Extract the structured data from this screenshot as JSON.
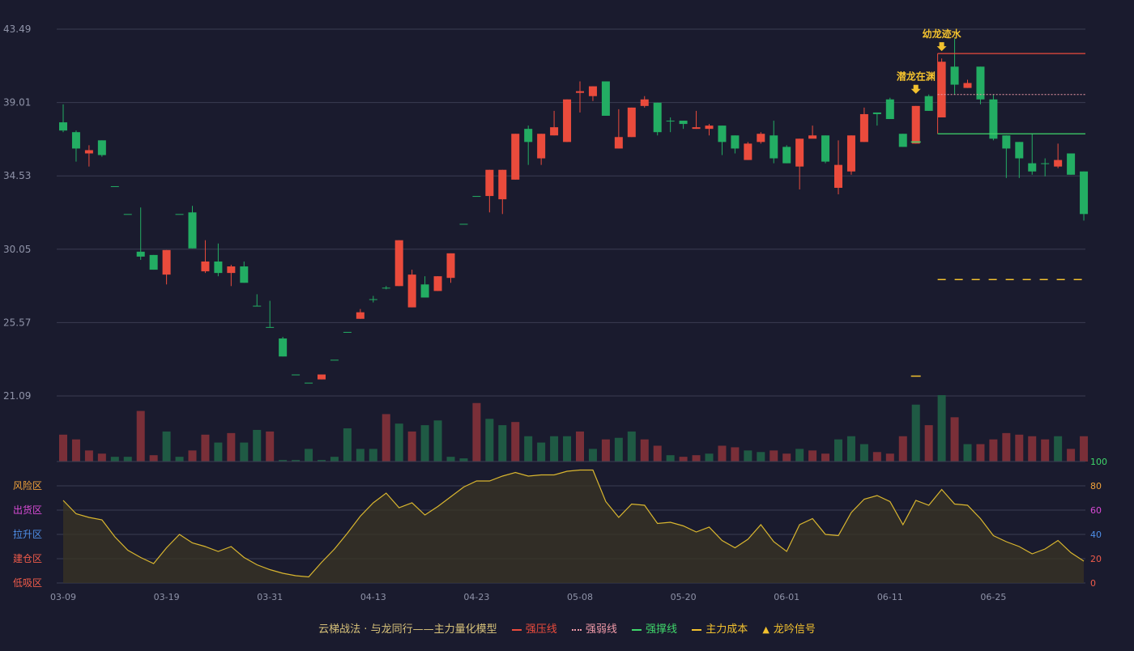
{
  "colors": {
    "background": "#1a1b2e",
    "up": "#ea4b3c",
    "down": "#23ad63",
    "up_volume": "#7a2f38",
    "down_volume": "#1f5a44",
    "pressure_line": "#ea4b3c",
    "weak_line": "#f09aa8",
    "support_line": "#3fd66a",
    "cost_line": "#f2c12e",
    "signal": "#f2c12e",
    "oscillator_line": "#d9b62f",
    "grid": "#3a3c52",
    "axis_text": "#8f93a8"
  },
  "legend": {
    "title": "云梯战法 · 与龙同行——主力量化模型",
    "items": [
      {
        "label": "强压线",
        "color": "#ea4b3c",
        "style": "solid"
      },
      {
        "label": "强弱线",
        "color": "#f09aa8",
        "style": "dotted"
      },
      {
        "label": "强撑线",
        "color": "#3fd66a",
        "style": "solid"
      },
      {
        "label": "主力成本",
        "color": "#f2c12e",
        "style": "dashed"
      },
      {
        "label": "龙吟信号",
        "color": "#f2c12e",
        "style": "triangle"
      }
    ]
  },
  "chart_data": [
    {
      "type": "candlestick",
      "title": "",
      "xlabel": "",
      "ylabel": "",
      "y_ticks": [
        "43.49",
        "39.01",
        "34.53",
        "30.05",
        "25.57",
        "21.09"
      ],
      "ylim": [
        21.09,
        43.49
      ],
      "x_tick_labels": [
        {
          "index": 0,
          "label": "03-09"
        },
        {
          "index": 8,
          "label": "03-19"
        },
        {
          "index": 16,
          "label": "03-31"
        },
        {
          "index": 24,
          "label": "04-13"
        },
        {
          "index": 32,
          "label": "04-23"
        },
        {
          "index": 40,
          "label": "05-08"
        },
        {
          "index": 48,
          "label": "05-20"
        },
        {
          "index": 56,
          "label": "06-01"
        },
        {
          "index": 64,
          "label": "06-11"
        },
        {
          "index": 72,
          "label": "06-25"
        }
      ],
      "ohlc": [
        [
          37.8,
          37.3,
          38.9,
          37.2
        ],
        [
          37.2,
          36.2,
          37.3,
          35.4
        ],
        [
          35.9,
          36.1,
          36.4,
          35.1
        ],
        [
          36.7,
          35.8,
          36.7,
          35.7
        ],
        [
          33.9,
          33.9,
          33.9,
          33.9
        ],
        [
          32.2,
          32.2,
          32.2,
          32.2
        ],
        [
          29.9,
          29.6,
          32.6,
          29.4
        ],
        [
          29.7,
          28.8,
          29.7,
          28.8
        ],
        [
          28.5,
          30.0,
          30.0,
          27.9
        ],
        [
          32.2,
          32.2,
          32.2,
          32.2
        ],
        [
          32.3,
          30.1,
          32.7,
          30.1
        ],
        [
          28.7,
          29.3,
          30.6,
          28.6
        ],
        [
          29.3,
          28.6,
          30.4,
          28.4
        ],
        [
          28.6,
          29.0,
          29.1,
          27.8
        ],
        [
          29.0,
          28.0,
          29.3,
          28.0
        ],
        [
          26.6,
          26.6,
          27.3,
          26.6
        ],
        [
          25.3,
          25.3,
          26.9,
          25.3
        ],
        [
          24.6,
          23.5,
          24.7,
          23.5
        ],
        [
          22.4,
          22.4,
          22.4,
          22.4
        ],
        [
          21.9,
          21.9,
          21.9,
          21.9
        ],
        [
          22.1,
          22.4,
          22.4,
          22.1
        ],
        [
          23.3,
          23.3,
          23.3,
          23.3
        ],
        [
          25.0,
          25.0,
          25.0,
          25.0
        ],
        [
          25.8,
          26.2,
          26.4,
          25.8
        ],
        [
          27.0,
          27.0,
          27.2,
          26.8
        ],
        [
          27.7,
          27.7,
          27.8,
          27.6
        ],
        [
          27.8,
          30.6,
          30.6,
          27.8
        ],
        [
          26.5,
          28.5,
          28.8,
          26.5
        ],
        [
          27.9,
          27.1,
          28.4,
          27.1
        ],
        [
          27.5,
          28.4,
          28.4,
          27.5
        ],
        [
          28.3,
          29.8,
          29.8,
          28.0
        ],
        [
          31.6,
          31.6,
          31.6,
          31.6
        ],
        [
          33.3,
          33.3,
          33.3,
          33.3
        ],
        [
          33.3,
          34.9,
          34.9,
          32.3
        ],
        [
          33.1,
          34.9,
          34.9,
          32.2
        ],
        [
          34.3,
          37.1,
          37.1,
          34.3
        ],
        [
          37.4,
          36.6,
          37.6,
          35.2
        ],
        [
          35.6,
          37.1,
          37.1,
          35.2
        ],
        [
          37.0,
          37.5,
          38.5,
          37.0
        ],
        [
          36.6,
          39.2,
          39.2,
          36.6
        ],
        [
          39.6,
          39.7,
          40.3,
          38.4
        ],
        [
          39.4,
          40.0,
          40.0,
          39.1
        ],
        [
          40.3,
          38.2,
          40.3,
          38.2
        ],
        [
          36.2,
          36.9,
          38.6,
          36.2
        ],
        [
          36.9,
          38.7,
          38.7,
          36.9
        ],
        [
          38.8,
          39.2,
          39.4,
          38.7
        ],
        [
          39.0,
          37.2,
          39.0,
          37.0
        ],
        [
          37.9,
          37.9,
          38.1,
          37.2
        ],
        [
          37.9,
          37.7,
          37.9,
          37.4
        ],
        [
          37.4,
          37.5,
          38.5,
          37.4
        ],
        [
          37.4,
          37.6,
          37.7,
          37.0
        ],
        [
          37.6,
          36.6,
          37.6,
          35.8
        ],
        [
          37.0,
          36.2,
          37.0,
          35.9
        ],
        [
          35.5,
          36.5,
          36.6,
          35.5
        ],
        [
          36.6,
          37.1,
          37.2,
          36.5
        ],
        [
          37.0,
          35.6,
          37.9,
          35.3
        ],
        [
          36.3,
          35.3,
          36.4,
          35.3
        ],
        [
          35.1,
          36.8,
          36.8,
          33.7
        ],
        [
          36.8,
          37.0,
          37.6,
          36.9
        ],
        [
          37.0,
          35.4,
          37.0,
          35.3
        ],
        [
          33.8,
          35.2,
          36.7,
          33.4
        ],
        [
          34.8,
          37.0,
          37.0,
          34.6
        ],
        [
          36.6,
          38.3,
          38.7,
          36.6
        ],
        [
          38.4,
          38.3,
          38.4,
          37.6
        ],
        [
          39.2,
          38.0,
          39.3,
          38.0
        ],
        [
          37.1,
          36.3,
          37.1,
          36.3
        ],
        [
          36.5,
          38.8,
          38.8,
          36.5
        ],
        [
          39.4,
          38.5,
          39.5,
          38.5
        ],
        [
          38.1,
          41.5,
          41.7,
          38.1
        ],
        [
          41.2,
          40.1,
          42.9,
          39.5
        ],
        [
          39.9,
          40.2,
          40.4,
          39.9
        ],
        [
          41.2,
          39.2,
          41.2,
          38.9
        ],
        [
          39.2,
          36.8,
          39.5,
          36.7
        ],
        [
          37.0,
          36.2,
          37.0,
          34.4
        ],
        [
          36.6,
          35.6,
          36.6,
          34.4
        ],
        [
          35.3,
          34.8,
          37.1,
          34.6
        ],
        [
          35.3,
          35.3,
          35.6,
          34.5
        ],
        [
          35.1,
          35.5,
          36.5,
          35.0
        ],
        [
          35.9,
          34.6,
          35.9,
          34.6
        ],
        [
          34.8,
          32.2,
          34.8,
          31.8
        ]
      ],
      "volume": [
        [
          17,
          1
        ],
        [
          14,
          1
        ],
        [
          7,
          1
        ],
        [
          5,
          1
        ],
        [
          3,
          0
        ],
        [
          3,
          0
        ],
        [
          32,
          1
        ],
        [
          4,
          1
        ],
        [
          19,
          0
        ],
        [
          3,
          0
        ],
        [
          7,
          1
        ],
        [
          17,
          1
        ],
        [
          12,
          0
        ],
        [
          18,
          1
        ],
        [
          12,
          0
        ],
        [
          20,
          0
        ],
        [
          19,
          1
        ],
        [
          1,
          0
        ],
        [
          1,
          0
        ],
        [
          8,
          0
        ],
        [
          1,
          0
        ],
        [
          3,
          0
        ],
        [
          21,
          0
        ],
        [
          8,
          0
        ],
        [
          8,
          0
        ],
        [
          30,
          1
        ],
        [
          24,
          0
        ],
        [
          19,
          1
        ],
        [
          23,
          0
        ],
        [
          26,
          0
        ],
        [
          3,
          0
        ],
        [
          2,
          0
        ],
        [
          37,
          1
        ],
        [
          27,
          0
        ],
        [
          23,
          0
        ],
        [
          25,
          1
        ],
        [
          16,
          0
        ],
        [
          12,
          0
        ],
        [
          16,
          0
        ],
        [
          16,
          0
        ],
        [
          19,
          1
        ],
        [
          8,
          0
        ],
        [
          14,
          1
        ],
        [
          15,
          0
        ],
        [
          19,
          0
        ],
        [
          14,
          1
        ],
        [
          10,
          1
        ],
        [
          4,
          0
        ],
        [
          3,
          1
        ],
        [
          4,
          1
        ],
        [
          5,
          0
        ],
        [
          10,
          1
        ],
        [
          9,
          1
        ],
        [
          7,
          0
        ],
        [
          6,
          0
        ],
        [
          7,
          1
        ],
        [
          5,
          1
        ],
        [
          8,
          0
        ],
        [
          7,
          1
        ],
        [
          5,
          1
        ],
        [
          14,
          0
        ],
        [
          16,
          0
        ],
        [
          11,
          0
        ],
        [
          6,
          1
        ],
        [
          5,
          1
        ],
        [
          16,
          1
        ],
        [
          36,
          0
        ],
        [
          23,
          1
        ],
        [
          42,
          0
        ],
        [
          28,
          1
        ],
        [
          11,
          0
        ],
        [
          11,
          1
        ],
        [
          14,
          1
        ],
        [
          18,
          1
        ],
        [
          17,
          1
        ],
        [
          16,
          1
        ],
        [
          14,
          1
        ],
        [
          16,
          0
        ],
        [
          8,
          1
        ],
        [
          16,
          1
        ]
      ],
      "lines": {
        "strong_pressure": {
          "value": 42.0,
          "from_index": 68
        },
        "strong_weak": {
          "value": 39.5,
          "from_index": 68
        },
        "strong_support": {
          "value": 37.1,
          "from_index": 68
        },
        "main_cost": {
          "value": 28.2,
          "from_index": 68
        },
        "short_marks": [
          {
            "index": 66,
            "value": 36.6,
            "color": "#3fd66a"
          },
          {
            "index": 66,
            "value": 22.3,
            "color": "#f2c12e"
          }
        ]
      },
      "signals": [
        {
          "index": 66,
          "value": 39.4,
          "label": "潜龙在渊"
        },
        {
          "index": 68,
          "value": 42.0,
          "label": "幼龙迹水"
        }
      ]
    },
    {
      "type": "line",
      "title": "",
      "xlabel": "",
      "ylabel": "",
      "ylim": [
        0,
        100
      ],
      "y_ticks": [
        "100",
        "80",
        "60",
        "40",
        "20",
        "0"
      ],
      "zones": [
        {
          "label": "风险区",
          "value": 80,
          "color": "#f0a23a"
        },
        {
          "label": "出货区",
          "value": 60,
          "color": "#d94bd6"
        },
        {
          "label": "拉升区",
          "value": 40,
          "color": "#4f8fe8"
        },
        {
          "label": "建仓区",
          "value": 20,
          "color": "#f05b4a"
        },
        {
          "label": "低吸区",
          "value": 0,
          "color": "#f05b4a"
        }
      ],
      "values": [
        68,
        57,
        54,
        52,
        38,
        27,
        21,
        16,
        29,
        40,
        33,
        30,
        26,
        30,
        21,
        15,
        11,
        8,
        6,
        5,
        17,
        28,
        41,
        55,
        66,
        74,
        62,
        66,
        56,
        63,
        71,
        79,
        84,
        84,
        88,
        91,
        88,
        89,
        89,
        92,
        93,
        93,
        67,
        54,
        65,
        64,
        49,
        50,
        47,
        42,
        46,
        35,
        29,
        36,
        48,
        34,
        26,
        48,
        53,
        40,
        39,
        58,
        69,
        72,
        67,
        48,
        68,
        64,
        77,
        65,
        64,
        53,
        39,
        34,
        30,
        24,
        28,
        35,
        25,
        18
      ]
    }
  ]
}
